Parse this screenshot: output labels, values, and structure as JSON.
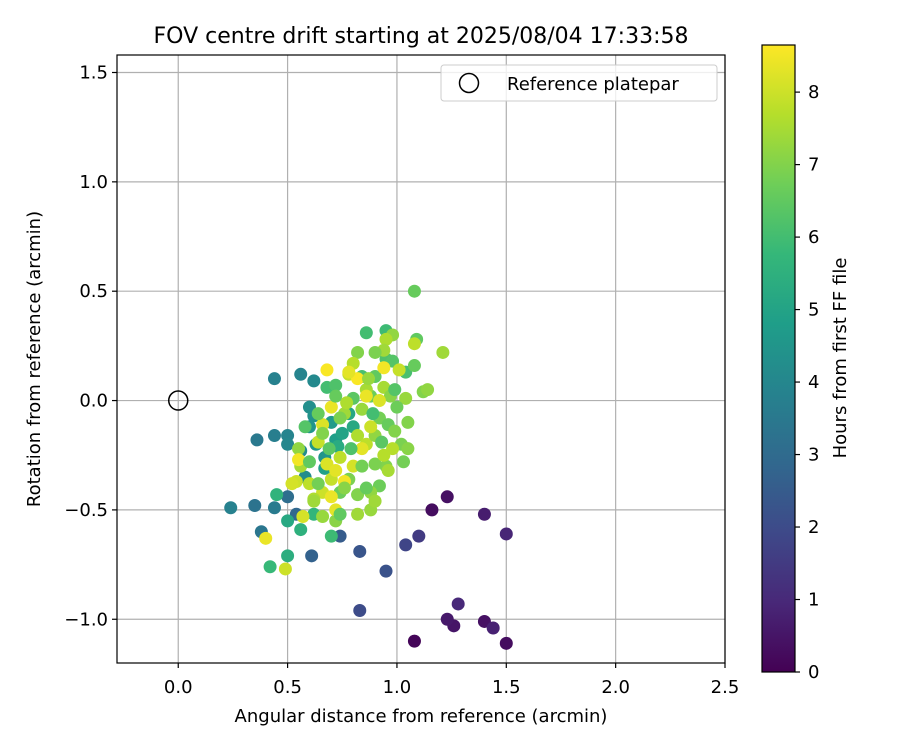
{
  "chart_data": {
    "type": "scatter",
    "title": "FOV centre drift starting at 2025/08/04 17:33:58",
    "xlabel": "Angular distance from reference (arcmin)",
    "ylabel": "Rotation from reference (arcmin)",
    "xlim": [
      -0.28,
      2.5
    ],
    "ylim": [
      -1.2,
      1.58
    ],
    "xticks": [
      0.0,
      0.5,
      1.0,
      1.5,
      2.0,
      2.5
    ],
    "xtick_labels": [
      "0.0",
      "0.5",
      "1.0",
      "1.5",
      "2.0",
      "2.5"
    ],
    "yticks": [
      -1.0,
      -0.5,
      0.0,
      0.5,
      1.0,
      1.5
    ],
    "ytick_labels": [
      "−1.0",
      "−0.5",
      "0.0",
      "0.5",
      "1.0",
      "1.5"
    ],
    "grid": true,
    "legend": {
      "position": "top-right",
      "label": "Reference platepar",
      "marker": "open-circle"
    },
    "reference_point": {
      "x": 0.0,
      "y": 0.0
    },
    "colorbar": {
      "label": "Hours from first FF file",
      "colormap": "viridis",
      "range": [
        0,
        8.65
      ],
      "ticks": [
        0,
        1,
        2,
        3,
        4,
        5,
        6,
        7,
        8
      ],
      "tick_labels": [
        "0",
        "1",
        "2",
        "3",
        "4",
        "5",
        "6",
        "7",
        "8"
      ]
    },
    "colormap_stops": [
      "#440154",
      "#482878",
      "#3e4989",
      "#31688e",
      "#26828e",
      "#1f9e89",
      "#35b779",
      "#6ece58",
      "#b5de2b",
      "#fde725"
    ],
    "points": [
      {
        "x": 1.08,
        "y": -1.1,
        "t": 0.1
      },
      {
        "x": 1.5,
        "y": -1.11,
        "t": 0.3
      },
      {
        "x": 1.26,
        "y": -1.03,
        "t": 0.5
      },
      {
        "x": 1.4,
        "y": -1.01,
        "t": 0.4
      },
      {
        "x": 1.23,
        "y": -1.0,
        "t": 0.6
      },
      {
        "x": 1.44,
        "y": -1.04,
        "t": 0.8
      },
      {
        "x": 1.28,
        "y": -0.93,
        "t": 1.0
      },
      {
        "x": 1.16,
        "y": -0.5,
        "t": 0.3
      },
      {
        "x": 1.23,
        "y": -0.44,
        "t": 0.4
      },
      {
        "x": 1.4,
        "y": -0.52,
        "t": 0.7
      },
      {
        "x": 1.5,
        "y": -0.61,
        "t": 0.9
      },
      {
        "x": 1.1,
        "y": -0.62,
        "t": 1.5
      },
      {
        "x": 1.04,
        "y": -0.66,
        "t": 1.8
      },
      {
        "x": 0.83,
        "y": -0.96,
        "t": 2.0
      },
      {
        "x": 0.95,
        "y": -0.78,
        "t": 2.2
      },
      {
        "x": 0.83,
        "y": -0.69,
        "t": 2.3
      },
      {
        "x": 0.74,
        "y": -0.62,
        "t": 2.5
      },
      {
        "x": 0.61,
        "y": -0.71,
        "t": 2.7
      },
      {
        "x": 0.54,
        "y": -0.52,
        "t": 2.9
      },
      {
        "x": 0.5,
        "y": -0.44,
        "t": 3.1
      },
      {
        "x": 0.35,
        "y": -0.48,
        "t": 3.3
      },
      {
        "x": 0.24,
        "y": -0.49,
        "t": 3.8
      },
      {
        "x": 0.38,
        "y": -0.6,
        "t": 3.4
      },
      {
        "x": 0.44,
        "y": -0.49,
        "t": 3.6
      },
      {
        "x": 0.36,
        "y": -0.18,
        "t": 3.5
      },
      {
        "x": 0.44,
        "y": -0.16,
        "t": 3.7
      },
      {
        "x": 0.5,
        "y": -0.16,
        "t": 3.9
      },
      {
        "x": 0.44,
        "y": 0.1,
        "t": 3.8
      },
      {
        "x": 0.56,
        "y": 0.12,
        "t": 3.9
      },
      {
        "x": 0.62,
        "y": 0.09,
        "t": 4.1
      },
      {
        "x": 0.5,
        "y": -0.2,
        "t": 4.0
      },
      {
        "x": 0.56,
        "y": -0.23,
        "t": 4.2
      },
      {
        "x": 0.6,
        "y": -0.03,
        "t": 4.3
      },
      {
        "x": 0.62,
        "y": -0.07,
        "t": 4.4
      },
      {
        "x": 0.58,
        "y": -0.35,
        "t": 4.2
      },
      {
        "x": 0.6,
        "y": -0.12,
        "t": 4.5
      },
      {
        "x": 0.63,
        "y": -0.2,
        "t": 4.6
      },
      {
        "x": 0.67,
        "y": -0.26,
        "t": 4.5
      },
      {
        "x": 0.7,
        "y": -0.1,
        "t": 4.7
      },
      {
        "x": 0.72,
        "y": -0.18,
        "t": 4.8
      },
      {
        "x": 0.67,
        "y": -0.31,
        "t": 4.9
      },
      {
        "x": 0.75,
        "y": -0.15,
        "t": 5.0
      },
      {
        "x": 0.78,
        "y": -0.06,
        "t": 5.1
      },
      {
        "x": 0.8,
        "y": -0.12,
        "t": 5.2
      },
      {
        "x": 0.73,
        "y": -0.21,
        "t": 5.3
      },
      {
        "x": 0.5,
        "y": -0.55,
        "t": 5.2
      },
      {
        "x": 0.5,
        "y": -0.71,
        "t": 5.4
      },
      {
        "x": 0.56,
        "y": -0.59,
        "t": 5.5
      },
      {
        "x": 0.45,
        "y": -0.43,
        "t": 5.6
      },
      {
        "x": 0.42,
        "y": -0.76,
        "t": 5.8
      },
      {
        "x": 0.7,
        "y": -0.62,
        "t": 5.9
      },
      {
        "x": 0.62,
        "y": -0.52,
        "t": 5.7
      },
      {
        "x": 0.68,
        "y": 0.06,
        "t": 6.0
      },
      {
        "x": 0.72,
        "y": 0.07,
        "t": 6.2
      },
      {
        "x": 0.8,
        "y": 0.01,
        "t": 6.4
      },
      {
        "x": 0.84,
        "y": 0.11,
        "t": 6.1
      },
      {
        "x": 0.86,
        "y": 0.31,
        "t": 6.0
      },
      {
        "x": 0.95,
        "y": 0.32,
        "t": 5.9
      },
      {
        "x": 0.95,
        "y": 0.19,
        "t": 6.2
      },
      {
        "x": 0.98,
        "y": 0.18,
        "t": 6.3
      },
      {
        "x": 1.04,
        "y": 0.13,
        "t": 6.1
      },
      {
        "x": 1.08,
        "y": 0.16,
        "t": 6.6
      },
      {
        "x": 1.09,
        "y": 0.28,
        "t": 6.5
      },
      {
        "x": 1.08,
        "y": 0.5,
        "t": 6.6
      },
      {
        "x": 0.9,
        "y": 0.11,
        "t": 6.5
      },
      {
        "x": 0.88,
        "y": 0.02,
        "t": 6.7
      },
      {
        "x": 0.92,
        "y": -0.08,
        "t": 6.8
      },
      {
        "x": 0.96,
        "y": -0.11,
        "t": 6.6
      },
      {
        "x": 1.02,
        "y": -0.2,
        "t": 6.9
      },
      {
        "x": 1.05,
        "y": -0.1,
        "t": 7.0
      },
      {
        "x": 1.05,
        "y": -0.22,
        "t": 7.1
      },
      {
        "x": 1.03,
        "y": -0.28,
        "t": 6.8
      },
      {
        "x": 0.95,
        "y": -0.3,
        "t": 7.0
      },
      {
        "x": 0.9,
        "y": -0.29,
        "t": 6.9
      },
      {
        "x": 0.92,
        "y": -0.39,
        "t": 6.7
      },
      {
        "x": 0.88,
        "y": -0.42,
        "t": 7.2
      },
      {
        "x": 0.88,
        "y": -0.5,
        "t": 7.3
      },
      {
        "x": 0.82,
        "y": -0.43,
        "t": 7.0
      },
      {
        "x": 0.78,
        "y": -0.36,
        "t": 6.9
      },
      {
        "x": 0.74,
        "y": -0.42,
        "t": 6.7
      },
      {
        "x": 0.72,
        "y": -0.55,
        "t": 7.1
      },
      {
        "x": 0.82,
        "y": -0.52,
        "t": 7.4
      },
      {
        "x": 1.12,
        "y": 0.04,
        "t": 7.0
      },
      {
        "x": 1.14,
        "y": 0.05,
        "t": 7.2
      },
      {
        "x": 1.21,
        "y": 0.22,
        "t": 7.4
      },
      {
        "x": 1.04,
        "y": 0.01,
        "t": 7.3
      },
      {
        "x": 0.94,
        "y": 0.06,
        "t": 7.5
      },
      {
        "x": 0.97,
        "y": 0.02,
        "t": 7.1
      },
      {
        "x": 0.98,
        "y": 0.3,
        "t": 7.2
      },
      {
        "x": 0.95,
        "y": 0.28,
        "t": 7.6
      },
      {
        "x": 0.94,
        "y": 0.23,
        "t": 7.4
      },
      {
        "x": 1.08,
        "y": 0.26,
        "t": 7.8
      },
      {
        "x": 0.82,
        "y": 0.22,
        "t": 7.0
      },
      {
        "x": 0.8,
        "y": 0.17,
        "t": 7.7
      },
      {
        "x": 0.78,
        "y": 0.12,
        "t": 7.9
      },
      {
        "x": 0.86,
        "y": 0.05,
        "t": 7.5
      },
      {
        "x": 0.84,
        "y": -0.04,
        "t": 7.3
      },
      {
        "x": 0.76,
        "y": -0.06,
        "t": 7.4
      },
      {
        "x": 0.82,
        "y": -0.16,
        "t": 7.6
      },
      {
        "x": 0.86,
        "y": -0.2,
        "t": 7.8
      },
      {
        "x": 0.9,
        "y": -0.16,
        "t": 7.2
      },
      {
        "x": 0.94,
        "y": -0.25,
        "t": 7.7
      },
      {
        "x": 0.99,
        "y": -0.14,
        "t": 7.0
      },
      {
        "x": 0.7,
        "y": -0.36,
        "t": 7.9
      },
      {
        "x": 0.66,
        "y": -0.42,
        "t": 8.0
      },
      {
        "x": 0.62,
        "y": -0.45,
        "t": 7.6
      },
      {
        "x": 0.6,
        "y": -0.38,
        "t": 7.8
      },
      {
        "x": 0.56,
        "y": -0.3,
        "t": 7.5
      },
      {
        "x": 0.55,
        "y": -0.22,
        "t": 7.2
      },
      {
        "x": 0.54,
        "y": -0.37,
        "t": 8.0
      },
      {
        "x": 0.57,
        "y": -0.53,
        "t": 8.1
      },
      {
        "x": 0.62,
        "y": -0.46,
        "t": 7.4
      },
      {
        "x": 0.64,
        "y": -0.19,
        "t": 7.9
      },
      {
        "x": 0.68,
        "y": -0.29,
        "t": 8.2
      },
      {
        "x": 0.72,
        "y": -0.32,
        "t": 8.3
      },
      {
        "x": 0.74,
        "y": -0.26,
        "t": 7.8
      },
      {
        "x": 0.7,
        "y": -0.44,
        "t": 8.4
      },
      {
        "x": 0.76,
        "y": -0.37,
        "t": 8.5
      },
      {
        "x": 0.8,
        "y": -0.3,
        "t": 8.1
      },
      {
        "x": 0.84,
        "y": -0.22,
        "t": 8.3
      },
      {
        "x": 0.88,
        "y": -0.12,
        "t": 8.0
      },
      {
        "x": 0.92,
        "y": 0.0,
        "t": 8.2
      },
      {
        "x": 0.86,
        "y": 0.02,
        "t": 8.4
      },
      {
        "x": 0.82,
        "y": 0.1,
        "t": 8.6
      },
      {
        "x": 0.94,
        "y": 0.15,
        "t": 8.5
      },
      {
        "x": 0.78,
        "y": 0.13,
        "t": 8.3
      },
      {
        "x": 0.68,
        "y": 0.14,
        "t": 8.6
      },
      {
        "x": 0.7,
        "y": -0.03,
        "t": 8.4
      },
      {
        "x": 0.66,
        "y": -0.11,
        "t": 8.2
      },
      {
        "x": 0.55,
        "y": -0.27,
        "t": 8.5
      },
      {
        "x": 0.52,
        "y": -0.38,
        "t": 8.1
      },
      {
        "x": 0.49,
        "y": -0.77,
        "t": 8.0
      },
      {
        "x": 0.4,
        "y": -0.63,
        "t": 8.4
      },
      {
        "x": 0.66,
        "y": -0.53,
        "t": 7.3
      },
      {
        "x": 0.72,
        "y": -0.5,
        "t": 8.3
      },
      {
        "x": 0.76,
        "y": -0.4,
        "t": 7.1
      },
      {
        "x": 0.64,
        "y": -0.38,
        "t": 6.8
      },
      {
        "x": 0.6,
        "y": -0.28,
        "t": 6.5
      },
      {
        "x": 0.58,
        "y": -0.12,
        "t": 6.3
      },
      {
        "x": 0.64,
        "y": -0.06,
        "t": 6.6
      },
      {
        "x": 0.66,
        "y": -0.15,
        "t": 7.0
      },
      {
        "x": 0.69,
        "y": -0.22,
        "t": 6.4
      },
      {
        "x": 0.74,
        "y": -0.08,
        "t": 6.9
      },
      {
        "x": 0.77,
        "y": -0.01,
        "t": 7.6
      },
      {
        "x": 0.79,
        "y": -0.22,
        "t": 6.2
      },
      {
        "x": 0.84,
        "y": -0.3,
        "t": 6.8
      },
      {
        "x": 0.89,
        "y": -0.06,
        "t": 6.0
      },
      {
        "x": 0.93,
        "y": -0.19,
        "t": 6.4
      },
      {
        "x": 1.0,
        "y": -0.03,
        "t": 6.7
      },
      {
        "x": 1.01,
        "y": 0.14,
        "t": 7.9
      },
      {
        "x": 0.99,
        "y": 0.05,
        "t": 6.3
      },
      {
        "x": 0.9,
        "y": 0.22,
        "t": 6.9
      },
      {
        "x": 0.87,
        "y": 0.1,
        "t": 7.3
      },
      {
        "x": 0.72,
        "y": 0.02,
        "t": 6.6
      },
      {
        "x": 0.74,
        "y": -0.52,
        "t": 6.5
      },
      {
        "x": 0.86,
        "y": -0.4,
        "t": 6.6
      },
      {
        "x": 0.9,
        "y": -0.46,
        "t": 7.4
      },
      {
        "x": 0.96,
        "y": -0.32,
        "t": 7.5
      },
      {
        "x": 0.98,
        "y": -0.22,
        "t": 7.7
      }
    ]
  }
}
